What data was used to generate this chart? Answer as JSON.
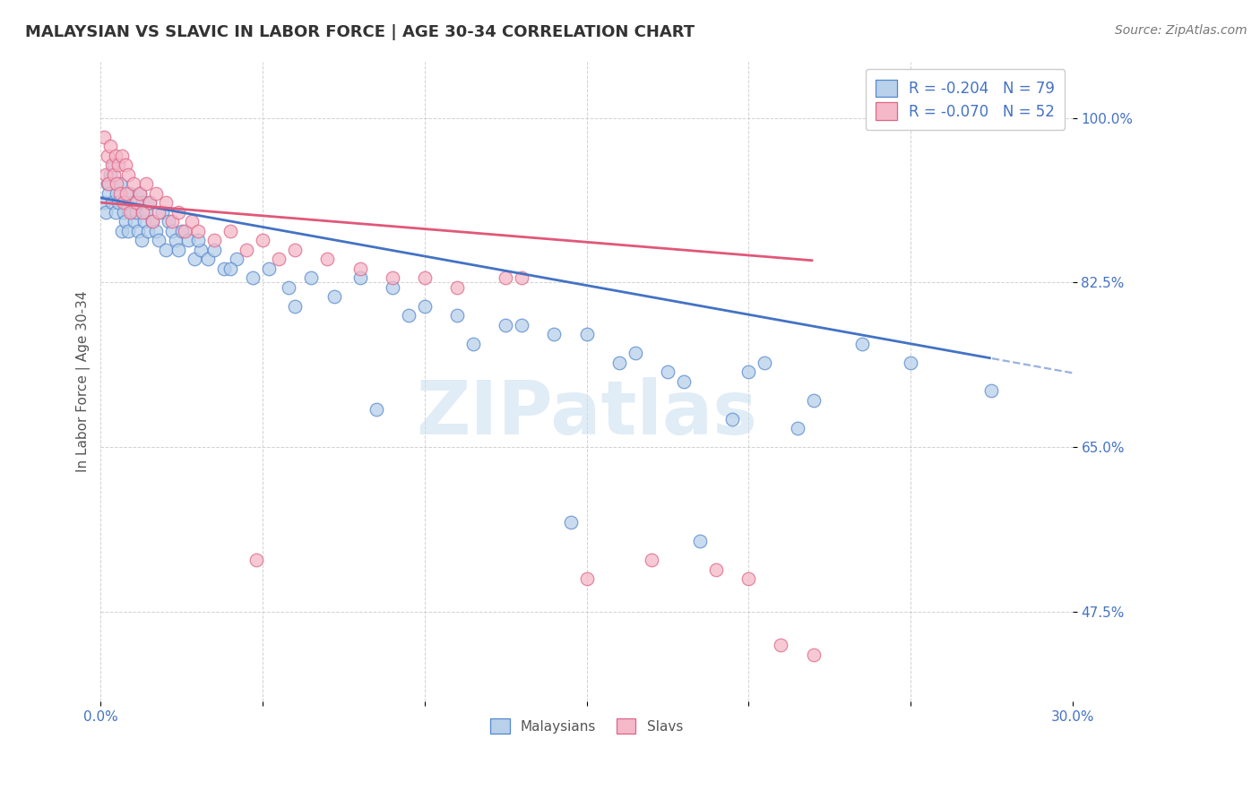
{
  "title": "MALAYSIAN VS SLAVIC IN LABOR FORCE | AGE 30-34 CORRELATION CHART",
  "source": "Source: ZipAtlas.com",
  "ylabel": "In Labor Force | Age 30-34",
  "xlim": [
    0.0,
    30.0
  ],
  "ylim": [
    38.0,
    106.0
  ],
  "yticks": [
    47.5,
    65.0,
    82.5,
    100.0
  ],
  "xtick_labels": [
    "0.0%",
    "",
    "",
    "",
    "",
    "",
    "30.0%"
  ],
  "ytick_labels": [
    "47.5%",
    "65.0%",
    "82.5%",
    "100.0%"
  ],
  "blue_fill": "#b8d0ea",
  "pink_fill": "#f5b8c8",
  "blue_edge": "#5588cc",
  "pink_edge": "#dd6688",
  "blue_line_color": "#4472c4",
  "pink_line_color": "#e05878",
  "legend_blue_label": "R = -0.204   N = 79",
  "legend_pink_label": "R = -0.070   N = 52",
  "legend_bottom_blue": "Malaysians",
  "legend_bottom_pink": "Slavs",
  "watermark_color": "#cce0f0",
  "title_fontsize": 13,
  "tick_fontsize": 11,
  "dot_size": 110,
  "dot_alpha": 0.75,
  "background_color": "#ffffff",
  "grid_color": "#cccccc",
  "source_fontsize": 10,
  "title_color": "#333333",
  "tick_color": "#4472c4",
  "blue_intercept": 91.5,
  "blue_slope": -0.62,
  "pink_intercept": 91.0,
  "pink_slope": -0.28,
  "blue_scatter_x": [
    0.1,
    0.15,
    0.2,
    0.25,
    0.3,
    0.35,
    0.4,
    0.45,
    0.5,
    0.55,
    0.6,
    0.65,
    0.7,
    0.75,
    0.8,
    0.85,
    0.9,
    0.95,
    1.0,
    1.05,
    1.1,
    1.15,
    1.2,
    1.25,
    1.3,
    1.35,
    1.4,
    1.45,
    1.5,
    1.6,
    1.7,
    1.8,
    1.9,
    2.0,
    2.1,
    2.2,
    2.3,
    2.4,
    2.5,
    2.7,
    2.9,
    3.1,
    3.3,
    3.5,
    3.8,
    4.2,
    4.7,
    5.2,
    5.8,
    6.5,
    7.2,
    8.0,
    9.0,
    10.0,
    11.0,
    12.5,
    14.0,
    16.0,
    18.0,
    20.0,
    22.0,
    23.5,
    25.0,
    27.5,
    8.5,
    14.5,
    16.5,
    18.5,
    20.5,
    3.0,
    4.0,
    6.0,
    9.5,
    11.5,
    13.0,
    15.0,
    17.5,
    19.5,
    21.5
  ],
  "blue_scatter_y": [
    91,
    90,
    93,
    92,
    94,
    91,
    95,
    90,
    92,
    91,
    93,
    88,
    90,
    89,
    91,
    88,
    92,
    90,
    91,
    89,
    90,
    88,
    92,
    87,
    91,
    89,
    90,
    88,
    91,
    89,
    88,
    87,
    90,
    86,
    89,
    88,
    87,
    86,
    88,
    87,
    85,
    86,
    85,
    86,
    84,
    85,
    83,
    84,
    82,
    83,
    81,
    83,
    82,
    80,
    79,
    78,
    77,
    74,
    72,
    73,
    70,
    76,
    74,
    71,
    69,
    57,
    75,
    55,
    74,
    87,
    84,
    80,
    79,
    76,
    78,
    77,
    73,
    68,
    67
  ],
  "pink_scatter_x": [
    0.1,
    0.15,
    0.2,
    0.25,
    0.3,
    0.35,
    0.4,
    0.45,
    0.5,
    0.55,
    0.6,
    0.65,
    0.7,
    0.75,
    0.8,
    0.85,
    0.9,
    1.0,
    1.1,
    1.2,
    1.3,
    1.4,
    1.5,
    1.6,
    1.7,
    1.8,
    2.0,
    2.2,
    2.4,
    2.6,
    2.8,
    3.0,
    3.5,
    4.0,
    4.5,
    5.0,
    5.5,
    6.0,
    7.0,
    8.0,
    9.0,
    10.0,
    11.0,
    13.0,
    15.0,
    17.0,
    19.0,
    20.0,
    21.0,
    22.0,
    4.8,
    12.5
  ],
  "pink_scatter_y": [
    98,
    94,
    96,
    93,
    97,
    95,
    94,
    96,
    93,
    95,
    92,
    96,
    91,
    95,
    92,
    94,
    90,
    93,
    91,
    92,
    90,
    93,
    91,
    89,
    92,
    90,
    91,
    89,
    90,
    88,
    89,
    88,
    87,
    88,
    86,
    87,
    85,
    86,
    85,
    84,
    83,
    83,
    82,
    83,
    51,
    53,
    52,
    51,
    44,
    43,
    53,
    83
  ]
}
